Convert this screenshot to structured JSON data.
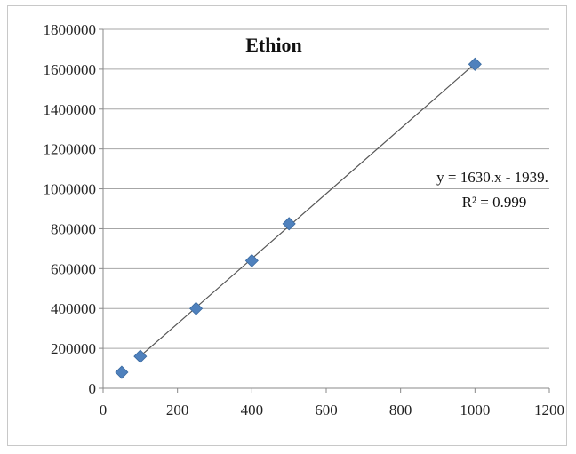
{
  "chart_data": {
    "type": "scatter",
    "title": "Ethion",
    "xlabel": "",
    "ylabel": "",
    "xlim": [
      0,
      1200
    ],
    "ylim": [
      0,
      1800000
    ],
    "xticks": [
      "0",
      "200",
      "400",
      "600",
      "800",
      "1000",
      "1200"
    ],
    "yticks": [
      "0",
      "200000",
      "400000",
      "600000",
      "800000",
      "1000000",
      "1200000",
      "1400000",
      "1600000",
      "1800000"
    ],
    "grid": true,
    "points": [
      {
        "x": 50,
        "y": 80000
      },
      {
        "x": 100,
        "y": 160000
      },
      {
        "x": 250,
        "y": 400000
      },
      {
        "x": 400,
        "y": 640000
      },
      {
        "x": 500,
        "y": 825000
      },
      {
        "x": 1000,
        "y": 1625000
      }
    ],
    "trendline": {
      "type": "linear",
      "x_range": [
        100,
        1000
      ],
      "equation": "y = 1630.x - 1939.",
      "r_squared": "R² = 0.999"
    },
    "colors": {
      "marker": "#4f81bd",
      "trendline": "#555555",
      "grid": "#a6a6a6"
    }
  }
}
